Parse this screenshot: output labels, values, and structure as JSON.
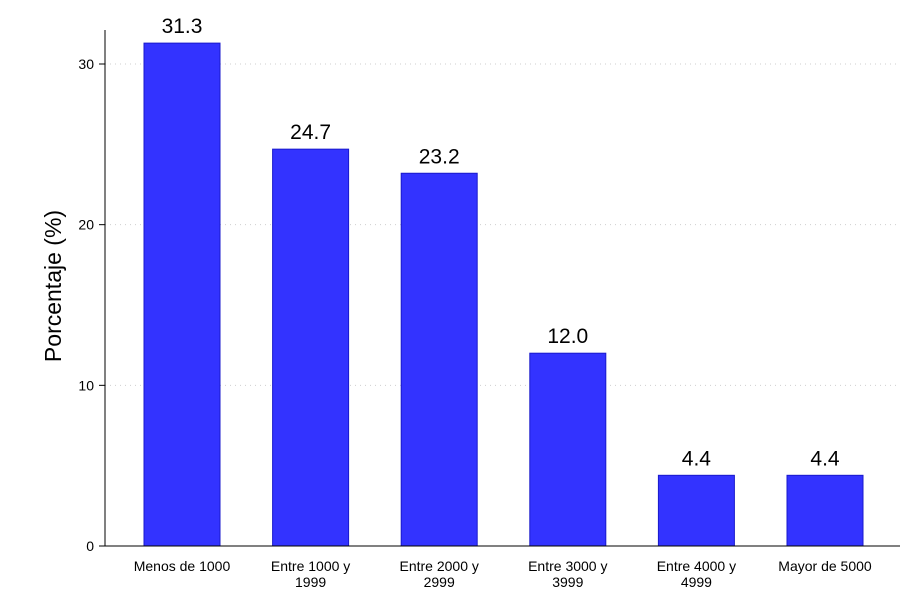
{
  "chart_data": {
    "type": "bar",
    "categories": [
      [
        "Menos de 1000"
      ],
      [
        "Entre 1000 y",
        "1999"
      ],
      [
        "Entre 2000 y",
        "2999"
      ],
      [
        "Entre 3000 y",
        "3999"
      ],
      [
        "Entre 4000 y",
        "4999"
      ],
      [
        "Mayor de 5000"
      ]
    ],
    "values": [
      31.3,
      24.7,
      23.2,
      12.0,
      4.4,
      4.4
    ],
    "value_labels": [
      "31.3",
      "24.7",
      "23.2",
      "12.0",
      "4.4",
      "4.4"
    ],
    "ylabel": "Porcentaje (%)",
    "xlabel": "",
    "ylim": [
      0,
      33
    ],
    "yticks": [
      0,
      10,
      20,
      30
    ],
    "grid": "horizontal dotted",
    "bar_color": "#3333ff",
    "bar_edge_color": "#1a1acc"
  }
}
